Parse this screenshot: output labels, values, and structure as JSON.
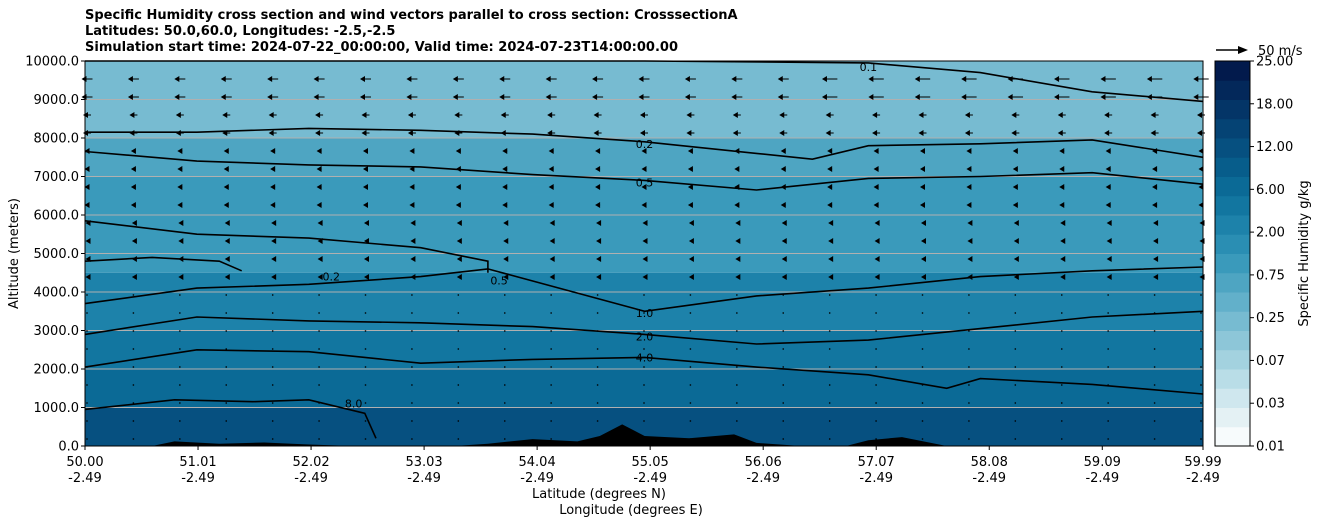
{
  "chart_data": {
    "type": "heatmap",
    "title_lines": [
      "Specific Humidity cross section and wind vectors parallel to cross section: CrosssectionA",
      "Latitudes: 50.0,60.0, Longitudes: -2.5,-2.5",
      "Simulation start time: 2024-07-22_00:00:00, Valid time: 2024-07-23T14:00:00.00"
    ],
    "ylabel": "Altitude (meters)",
    "xlabel_lines": [
      "Latitude (degrees N)",
      "Longitude (degrees E)"
    ],
    "ylim": [
      0,
      10000
    ],
    "xlim": [
      50.0,
      59.99
    ],
    "y_ticks": [
      "0.0",
      "1000.0",
      "2000.0",
      "3000.0",
      "4000.0",
      "5000.0",
      "6000.0",
      "7000.0",
      "8000.0",
      "9000.0",
      "10000.0"
    ],
    "y_tick_values": [
      0,
      1000,
      2000,
      3000,
      4000,
      5000,
      6000,
      7000,
      8000,
      9000,
      10000
    ],
    "x_ticks": [
      {
        "lat": "50.00",
        "lon": "-2.49",
        "value": 50.0
      },
      {
        "lat": "51.01",
        "lon": "-2.49",
        "value": 51.01
      },
      {
        "lat": "52.02",
        "lon": "-2.49",
        "value": 52.02
      },
      {
        "lat": "53.03",
        "lon": "-2.49",
        "value": 53.03
      },
      {
        "lat": "54.04",
        "lon": "-2.49",
        "value": 54.04
      },
      {
        "lat": "55.05",
        "lon": "-2.49",
        "value": 55.05
      },
      {
        "lat": "56.06",
        "lon": "-2.49",
        "value": 56.06
      },
      {
        "lat": "57.07",
        "lon": "-2.49",
        "value": 57.07
      },
      {
        "lat": "58.08",
        "lon": "-2.49",
        "value": 58.08
      },
      {
        "lat": "59.09",
        "lon": "-2.49",
        "value": 59.09
      },
      {
        "lat": "59.99",
        "lon": "-2.49",
        "value": 59.99
      }
    ],
    "grid": "horizontal",
    "colorbar": {
      "label": "Specific Humidity g/kg",
      "ticks": [
        "0.01",
        "0.03",
        "0.07",
        "0.25",
        "0.75",
        "2.00",
        "6.00",
        "12.00",
        "18.00",
        "25.00"
      ],
      "levels": [
        0.01,
        0.02,
        0.03,
        0.05,
        0.07,
        0.1,
        0.25,
        0.5,
        0.75,
        1.0,
        2.0,
        4.0,
        6.0,
        8.0,
        12.0,
        15.0,
        18.0,
        20.0,
        25.0
      ],
      "colors": [
        "#f7fbfc",
        "#e4f1f4",
        "#cfe7ee",
        "#b9dde7",
        "#a3d2df",
        "#8dc6d8",
        "#77bbd1",
        "#62b0ca",
        "#4ea5c2",
        "#3a9abb",
        "#2a8eb3",
        "#1d82aa",
        "#1276a0",
        "#0b6a96",
        "#075d8b",
        "#065080",
        "#054374",
        "#043567",
        "#03285a",
        "#021a4c"
      ]
    },
    "field_bands": [
      {
        "name": "band-upper",
        "value": 0.1,
        "top": 10000,
        "bottom": 8000,
        "color": "#77bbd1"
      },
      {
        "name": "band-02",
        "value": 0.25,
        "top": 8000,
        "bottom": 7000,
        "color": "#4ea5c2"
      },
      {
        "name": "band-05",
        "value": 0.75,
        "top": 7000,
        "bottom": 4500,
        "color": "#3a9abb"
      },
      {
        "name": "band-10",
        "value": 2.0,
        "top": 4500,
        "bottom": 3000,
        "color": "#1d82aa"
      },
      {
        "name": "band-20",
        "value": 4.0,
        "top": 3000,
        "bottom": 2000,
        "color": "#1276a0"
      },
      {
        "name": "band-40",
        "value": 6.0,
        "top": 2000,
        "bottom": 1000,
        "color": "#0b6a96"
      },
      {
        "name": "band-80",
        "value": 8.0,
        "top": 1000,
        "bottom": 0,
        "color": "#065080"
      }
    ],
    "contours": [
      {
        "name": "contour-0.1",
        "label": "0.1",
        "label_x": 57.0,
        "label_y": 9850,
        "points": [
          [
            50.0,
            10000
          ],
          [
            51.5,
            10000
          ],
          [
            55.0,
            10000
          ],
          [
            57.0,
            9950
          ],
          [
            58.0,
            9700
          ],
          [
            59.0,
            9200
          ],
          [
            59.99,
            8950
          ]
        ]
      },
      {
        "name": "contour-0.2",
        "label": "0.2",
        "label_x": 55.0,
        "label_y": 7850,
        "points": [
          [
            50.0,
            8150
          ],
          [
            51.0,
            8150
          ],
          [
            52.0,
            8250
          ],
          [
            53.0,
            8200
          ],
          [
            54.0,
            8100
          ],
          [
            55.0,
            7900
          ],
          [
            56.0,
            7600
          ],
          [
            56.5,
            7450
          ],
          [
            57.0,
            7800
          ],
          [
            58.0,
            7850
          ],
          [
            59.0,
            7950
          ],
          [
            59.99,
            7500
          ]
        ]
      },
      {
        "name": "contour-0.5",
        "label": "0.5",
        "label_x": 55.0,
        "label_y": 6850,
        "points": [
          [
            50.0,
            7650
          ],
          [
            51.0,
            7400
          ],
          [
            52.0,
            7300
          ],
          [
            53.0,
            7250
          ],
          [
            54.0,
            7050
          ],
          [
            55.0,
            6900
          ],
          [
            56.0,
            6650
          ],
          [
            57.0,
            6950
          ],
          [
            58.0,
            7000
          ],
          [
            59.0,
            7100
          ],
          [
            59.99,
            6800
          ]
        ]
      },
      {
        "name": "contour-0.5b",
        "label": "0.5",
        "label_x": 53.7,
        "label_y": 4300,
        "points": [
          [
            50.0,
            5850
          ],
          [
            51.0,
            5500
          ],
          [
            52.0,
            5400
          ],
          [
            53.0,
            5150
          ],
          [
            53.6,
            4800
          ],
          [
            53.6,
            4500
          ]
        ]
      },
      {
        "name": "contour-0.2b",
        "label": "0.2",
        "label_x": 52.2,
        "label_y": 4400,
        "points": [
          [
            50.0,
            4800
          ],
          [
            50.6,
            4900
          ],
          [
            51.2,
            4800
          ],
          [
            51.4,
            4550
          ]
        ]
      },
      {
        "name": "contour-1.0",
        "label": "1.0",
        "label_x": 55.0,
        "label_y": 3450,
        "points": [
          [
            50.0,
            3700
          ],
          [
            51.0,
            4100
          ],
          [
            52.0,
            4200
          ],
          [
            53.0,
            4400
          ],
          [
            53.6,
            4600
          ],
          [
            55.0,
            3500
          ],
          [
            56.0,
            3900
          ],
          [
            57.0,
            4100
          ],
          [
            58.0,
            4400
          ],
          [
            59.0,
            4550
          ],
          [
            59.99,
            4650
          ]
        ]
      },
      {
        "name": "contour-2.0",
        "label": "2.0",
        "label_x": 55.0,
        "label_y": 2850,
        "points": [
          [
            50.0,
            2900
          ],
          [
            51.0,
            3350
          ],
          [
            52.0,
            3250
          ],
          [
            53.0,
            3200
          ],
          [
            54.0,
            3100
          ],
          [
            55.0,
            2900
          ],
          [
            56.0,
            2650
          ],
          [
            57.0,
            2750
          ],
          [
            58.0,
            3050
          ],
          [
            59.0,
            3350
          ],
          [
            59.99,
            3500
          ]
        ]
      },
      {
        "name": "contour-4.0",
        "label": "4.0",
        "label_x": 55.0,
        "label_y": 2300,
        "points": [
          [
            50.0,
            2050
          ],
          [
            51.0,
            2500
          ],
          [
            52.0,
            2450
          ],
          [
            53.0,
            2150
          ],
          [
            54.0,
            2250
          ],
          [
            55.0,
            2300
          ],
          [
            56.0,
            2050
          ],
          [
            57.0,
            1850
          ],
          [
            57.7,
            1500
          ],
          [
            58.0,
            1750
          ],
          [
            59.0,
            1600
          ],
          [
            59.99,
            1350
          ]
        ]
      },
      {
        "name": "contour-8.0",
        "label": "8.0",
        "label_x": 52.4,
        "label_y": 1100,
        "points": [
          [
            50.0,
            950
          ],
          [
            50.8,
            1200
          ],
          [
            51.5,
            1150
          ],
          [
            52.0,
            1200
          ],
          [
            52.5,
            850
          ],
          [
            52.6,
            200
          ]
        ]
      }
    ],
    "terrain": [
      [
        50.0,
        0
      ],
      [
        50.6,
        0
      ],
      [
        50.8,
        120
      ],
      [
        51.2,
        60
      ],
      [
        51.6,
        90
      ],
      [
        52.0,
        40
      ],
      [
        52.4,
        0
      ],
      [
        53.3,
        0
      ],
      [
        53.6,
        60
      ],
      [
        54.0,
        180
      ],
      [
        54.4,
        120
      ],
      [
        54.6,
        260
      ],
      [
        54.8,
        560
      ],
      [
        55.0,
        260
      ],
      [
        55.4,
        200
      ],
      [
        55.8,
        300
      ],
      [
        56.0,
        80
      ],
      [
        56.4,
        0
      ],
      [
        56.8,
        0
      ],
      [
        57.0,
        150
      ],
      [
        57.3,
        230
      ],
      [
        57.7,
        0
      ],
      [
        59.99,
        0
      ]
    ],
    "wind_scale_label": "50 m/s"
  }
}
